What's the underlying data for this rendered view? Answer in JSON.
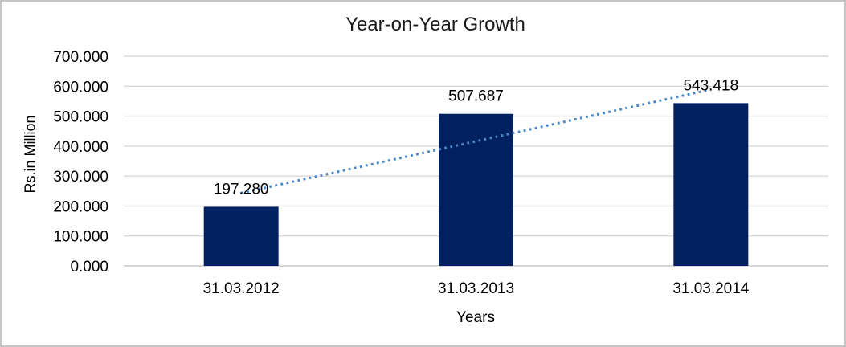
{
  "frame": {
    "background": "#ffffff",
    "border_color": "#c6c6c6"
  },
  "chart_data": {
    "type": "bar",
    "title": "Year-on-Year Growth",
    "xlabel": "Years",
    "ylabel": "Rs.in Million",
    "categories": [
      "31.03.2012",
      "31.03.2013",
      "31.03.2014"
    ],
    "values": [
      197.28,
      507.687,
      543.418
    ],
    "data_labels": [
      "197.280",
      "507.687",
      "543.418"
    ],
    "ylim": [
      0,
      700
    ],
    "ytick_step": 100,
    "ytick_labels": [
      "0.000",
      "100.000",
      "200.000",
      "300.000",
      "400.000",
      "500.000",
      "600.000",
      "700.000"
    ],
    "grid": true,
    "legend": "none",
    "bar_color": "#002060",
    "gridline_color": "#d9d9d9",
    "axis_line_color": "#c9c9c9",
    "trendline": {
      "type": "linear",
      "style": "dotted",
      "color": "#4a86c8"
    }
  }
}
